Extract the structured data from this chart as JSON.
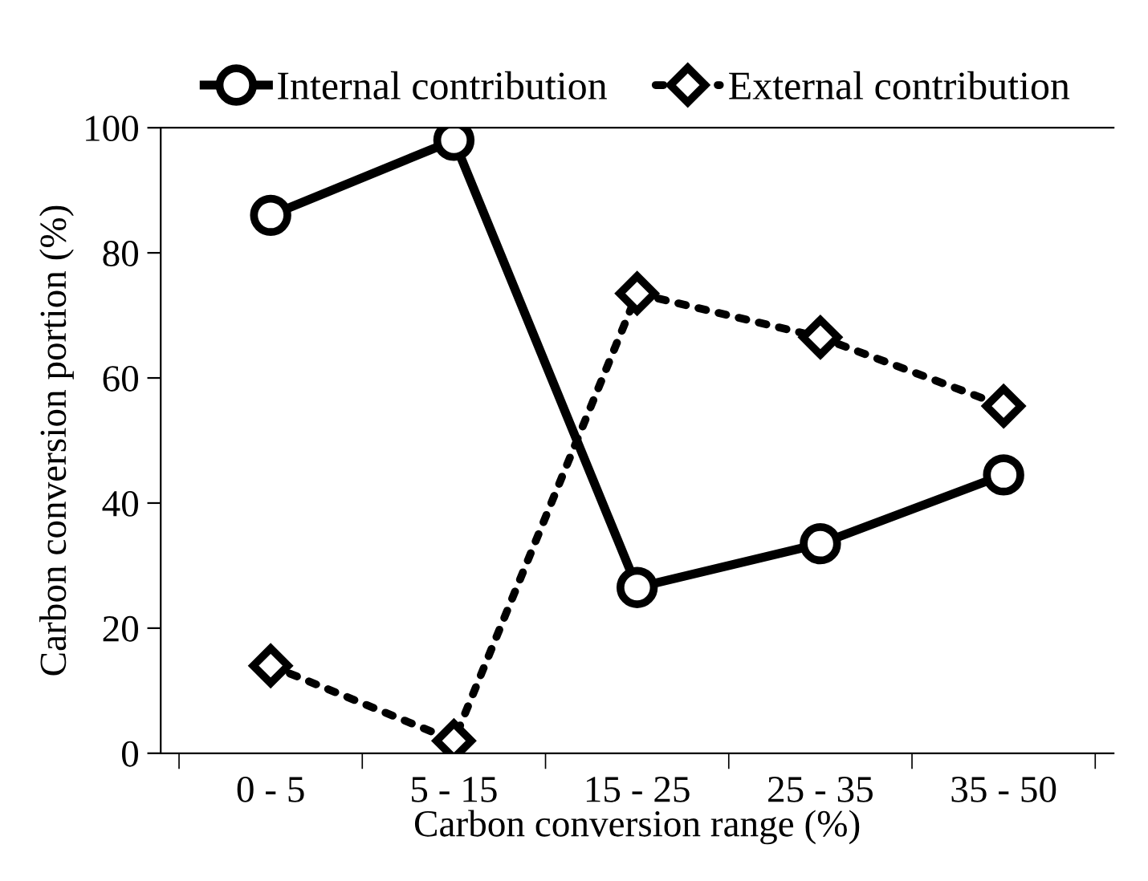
{
  "chart_data": {
    "type": "line",
    "xlabel": "Carbon conversion range (%)",
    "ylabel": "Carbon conversion portion (%)",
    "categories": [
      "0 - 5",
      "5 - 15",
      "15 - 25",
      "25 - 35",
      "35 - 50"
    ],
    "series": [
      {
        "name": "Internal contribution",
        "color": "#000000",
        "values": [
          86,
          98,
          26.5,
          33.5,
          44.5
        ],
        "marker": "circle",
        "line_style": "solid"
      },
      {
        "name": "External contribution",
        "color": "#000000",
        "values": [
          14,
          2,
          73.5,
          66.5,
          55.5
        ],
        "marker": "diamond",
        "line_style": "dotted"
      }
    ],
    "ylim": [
      0,
      100
    ],
    "yticks": [
      0,
      20,
      40,
      60,
      80,
      100
    ],
    "grid": false,
    "legend": "top"
  }
}
